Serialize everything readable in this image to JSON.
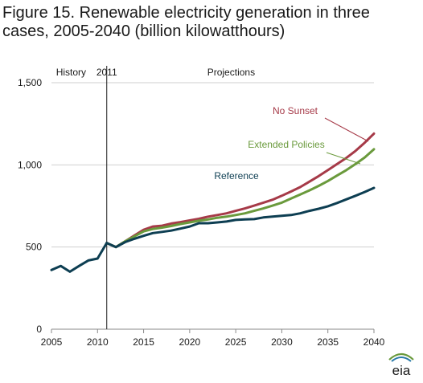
{
  "title_lines": [
    "Figure 15. Renewable electricity generation in three",
    "cases, 2005-2040 (billion kilowatthours)"
  ],
  "logo_text": "eia",
  "chart_data": {
    "type": "line",
    "title": "Figure 15. Renewable electricity generation in three cases, 2005-2040 (billion kilowatthours)",
    "xlim": [
      2005,
      2040
    ],
    "ylim": [
      0,
      1500
    ],
    "x_ticks": [
      2005,
      2010,
      2015,
      2020,
      2025,
      2030,
      2035,
      2040
    ],
    "y_ticks": [
      0,
      500,
      1000,
      1500
    ],
    "y_tick_labels": [
      "0",
      "500",
      "1,000",
      "1,500"
    ],
    "grid": "horizontal",
    "divider": {
      "x": 2011,
      "label": "2011"
    },
    "region_labels": {
      "history": "History",
      "projections": "Projections"
    },
    "history": {
      "color": "#0d3e52",
      "x": [
        2005,
        2006,
        2007,
        2008,
        2009,
        2010,
        2011
      ],
      "y": [
        360,
        385,
        350,
        385,
        418,
        430,
        525
      ]
    },
    "series": [
      {
        "name": "No Sunset",
        "color": "#a63a48",
        "x": [
          2011,
          2012,
          2013,
          2014,
          2015,
          2016,
          2017,
          2018,
          2019,
          2020,
          2021,
          2022,
          2023,
          2024,
          2025,
          2026,
          2027,
          2028,
          2029,
          2030,
          2031,
          2032,
          2033,
          2034,
          2035,
          2036,
          2037,
          2038,
          2039,
          2040
        ],
        "y": [
          525,
          500,
          535,
          570,
          605,
          625,
          630,
          643,
          652,
          662,
          672,
          685,
          695,
          705,
          720,
          735,
          752,
          770,
          788,
          812,
          838,
          865,
          898,
          932,
          968,
          1005,
          1042,
          1085,
          1135,
          1190
        ]
      },
      {
        "name": "Extended Policies",
        "color": "#6a9a3c",
        "x": [
          2011,
          2012,
          2013,
          2014,
          2015,
          2016,
          2017,
          2018,
          2019,
          2020,
          2021,
          2022,
          2023,
          2024,
          2025,
          2026,
          2027,
          2028,
          2029,
          2030,
          2031,
          2032,
          2033,
          2034,
          2035,
          2036,
          2037,
          2038,
          2039,
          2040
        ],
        "y": [
          525,
          500,
          535,
          565,
          595,
          610,
          618,
          628,
          640,
          650,
          660,
          668,
          678,
          685,
          695,
          705,
          720,
          735,
          752,
          770,
          795,
          820,
          845,
          872,
          902,
          935,
          968,
          1005,
          1045,
          1095
        ]
      },
      {
        "name": "Reference",
        "color": "#0d3e52",
        "x": [
          2011,
          2012,
          2013,
          2014,
          2015,
          2016,
          2017,
          2018,
          2019,
          2020,
          2021,
          2022,
          2023,
          2024,
          2025,
          2026,
          2027,
          2028,
          2029,
          2030,
          2031,
          2032,
          2033,
          2034,
          2035,
          2036,
          2037,
          2038,
          2039,
          2040
        ],
        "y": [
          525,
          500,
          530,
          550,
          568,
          585,
          592,
          600,
          612,
          625,
          645,
          645,
          650,
          655,
          665,
          668,
          670,
          680,
          685,
          690,
          695,
          705,
          720,
          733,
          748,
          768,
          790,
          812,
          835,
          860
        ]
      }
    ]
  }
}
